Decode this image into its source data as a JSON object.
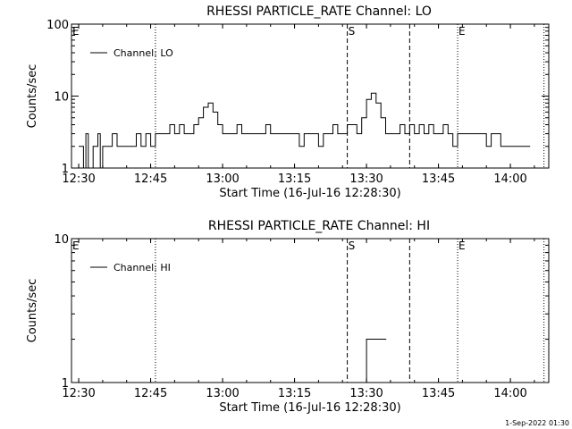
{
  "footer": {
    "timestamp": "1-Sep-2022 01:30"
  },
  "chart_data": [
    {
      "type": "line",
      "title": "RHESSI PARTICLE_RATE Channel: LO",
      "xlabel": "Start Time (16-Jul-16 12:28:30)",
      "ylabel": "Counts/sec",
      "xlim": [
        "12:28:30",
        "14:08:00"
      ],
      "ylim": [
        1,
        100
      ],
      "yscale": "log",
      "xticks": [
        "12:30",
        "12:45",
        "13:00",
        "13:15",
        "13:30",
        "13:45",
        "14:00"
      ],
      "yticks": [
        "1",
        "10",
        "100"
      ],
      "legend": "top-left",
      "series": [
        {
          "name": "Channel: LO",
          "x": [
            "12:30",
            "12:31",
            "12:31:30",
            "12:32",
            "12:33",
            "12:34",
            "12:34:30",
            "12:35",
            "12:36",
            "12:37",
            "12:38",
            "12:39",
            "12:40",
            "12:41",
            "12:42",
            "12:43",
            "12:44",
            "12:45",
            "12:46",
            "12:47",
            "12:48",
            "12:49",
            "12:50",
            "12:51",
            "12:52",
            "12:53",
            "12:54",
            "12:55",
            "12:56",
            "12:57",
            "12:58",
            "12:59",
            "13:00",
            "13:01",
            "13:02",
            "13:03",
            "13:04",
            "13:05",
            "13:06",
            "13:07",
            "13:08",
            "13:09",
            "13:10",
            "13:11",
            "13:12",
            "13:13",
            "13:14",
            "13:15",
            "13:16",
            "13:17",
            "13:18",
            "13:19",
            "13:20",
            "13:21",
            "13:22",
            "13:23",
            "13:24",
            "13:25",
            "13:26",
            "13:27",
            "13:28",
            "13:29",
            "13:30",
            "13:31",
            "13:32",
            "13:33",
            "13:34",
            "13:35",
            "13:36",
            "13:37",
            "13:38",
            "13:39",
            "13:40",
            "13:41",
            "13:42",
            "13:43",
            "13:44",
            "13:45",
            "13:46",
            "13:47",
            "13:48",
            "13:49",
            "13:50",
            "13:51",
            "13:52",
            "13:53",
            "13:54",
            "13:55",
            "13:56",
            "13:57",
            "13:58",
            "13:59",
            "14:00",
            "14:01",
            "14:02",
            "14:03"
          ],
          "y": [
            2,
            1,
            3,
            1,
            2,
            3,
            1,
            2,
            2,
            3,
            2,
            2,
            2,
            2,
            3,
            2,
            3,
            2,
            3,
            3,
            3,
            4,
            3,
            4,
            3,
            3,
            4,
            5,
            7,
            8,
            6,
            4,
            3,
            3,
            3,
            4,
            3,
            3,
            3,
            3,
            3,
            4,
            3,
            3,
            3,
            3,
            3,
            3,
            2,
            3,
            3,
            3,
            2,
            3,
            3,
            4,
            3,
            3,
            4,
            4,
            3,
            5,
            9,
            11,
            8,
            5,
            3,
            3,
            3,
            4,
            3,
            4,
            3,
            4,
            3,
            4,
            3,
            3,
            4,
            3,
            2,
            3,
            3,
            3,
            3,
            3,
            3,
            2,
            3,
            3,
            2,
            2,
            2,
            2,
            2,
            2
          ]
        }
      ],
      "annotations": [
        {
          "label": "E",
          "x": "12:28:30",
          "style": "dotted"
        },
        {
          "label": "",
          "x": "12:46",
          "style": "dotted"
        },
        {
          "label": "S",
          "x": "13:26",
          "style": "dashed"
        },
        {
          "label": "",
          "x": "13:39",
          "style": "dashed"
        },
        {
          "label": "E",
          "x": "13:49",
          "style": "dotted"
        },
        {
          "label": "",
          "x": "14:07",
          "style": "dotted"
        }
      ]
    },
    {
      "type": "line",
      "title": "RHESSI PARTICLE_RATE Channel: HI",
      "xlabel": "Start Time (16-Jul-16 12:28:30)",
      "ylabel": "Counts/sec",
      "xlim": [
        "12:28:30",
        "14:08:00"
      ],
      "ylim": [
        1,
        10
      ],
      "yscale": "log",
      "xticks": [
        "12:30",
        "12:45",
        "13:00",
        "13:15",
        "13:30",
        "13:45",
        "14:00"
      ],
      "yticks": [
        "1",
        "10"
      ],
      "legend": "top-left",
      "series": [
        {
          "name": "Channel: HI",
          "x": [
            "13:30",
            "13:30",
            "13:31",
            "13:32",
            "13:33"
          ],
          "y": [
            1,
            2,
            2,
            2,
            2
          ]
        }
      ],
      "annotations": [
        {
          "label": "E",
          "x": "12:28:30",
          "style": "dotted"
        },
        {
          "label": "",
          "x": "12:46",
          "style": "dotted"
        },
        {
          "label": "S",
          "x": "13:26",
          "style": "dashed"
        },
        {
          "label": "",
          "x": "13:39",
          "style": "dashed"
        },
        {
          "label": "E",
          "x": "13:49",
          "style": "dotted"
        },
        {
          "label": "",
          "x": "14:07",
          "style": "dotted"
        }
      ]
    }
  ]
}
